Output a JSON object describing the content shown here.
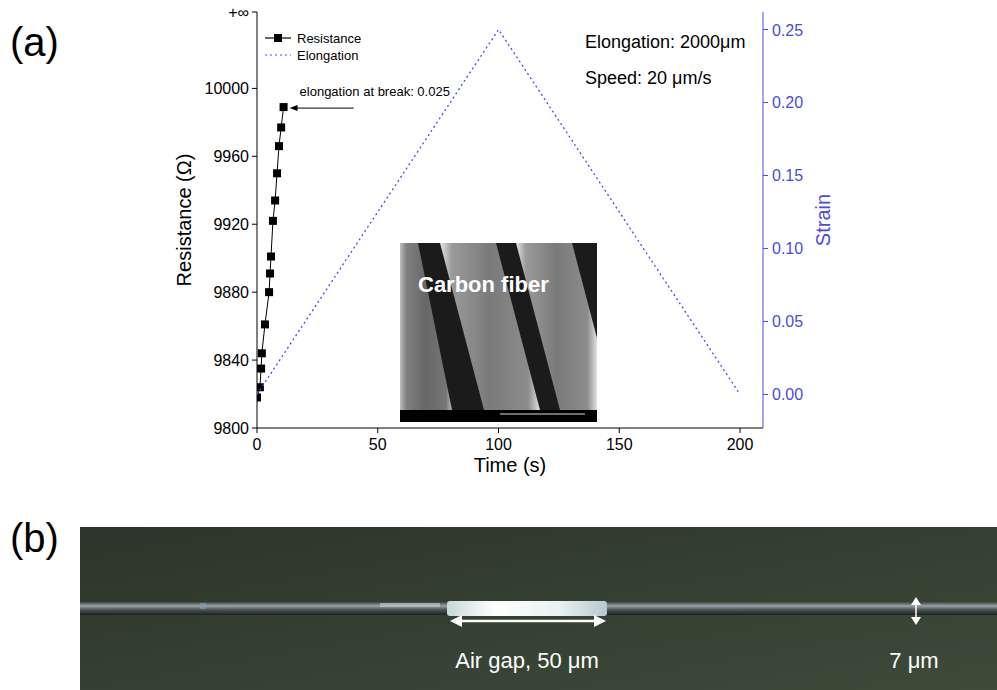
{
  "chart_data": {
    "type": "line",
    "panel_label": "(a)",
    "x_label": "Time (s)",
    "y_label": "Resistance (Ω)",
    "y2_label": "Strain",
    "xlim": [
      0,
      209.5
    ],
    "xticks": [
      0,
      50,
      100,
      150,
      200
    ],
    "ylim": [
      9800,
      10045
    ],
    "yticks": [
      9800,
      9840,
      9880,
      9920,
      9960,
      10000,
      {
        "value": 10045,
        "label": "+∞"
      }
    ],
    "y2lim": [
      -0.023,
      0.262
    ],
    "y2ticks": [
      {
        "value": 0,
        "label": "0.00"
      },
      0.05,
      {
        "value": 0.1,
        "label": "0.10"
      },
      0.15,
      {
        "value": 0.2,
        "label": "0.20"
      },
      0.25
    ],
    "legend": "upper left",
    "series": [
      {
        "name": "Resistance",
        "color": "#000000",
        "marker": "square",
        "line_style": "solid",
        "x": [
          0,
          1.2,
          1.7,
          2,
          3.3,
          5,
          5.4,
          5.8,
          6.6,
          7.5,
          8.3,
          9.1,
          10,
          11
        ],
        "values": [
          9818,
          9824,
          9835,
          9844,
          9861,
          9880,
          9891,
          9901,
          9922,
          9934,
          9950,
          9966,
          9977,
          9989
        ]
      },
      {
        "name": "Elongation",
        "color": "#4a4ae0",
        "line_style": "dotted",
        "axis": "y2",
        "x": [
          0,
          100,
          200
        ],
        "values": [
          0,
          0.25,
          0
        ]
      }
    ],
    "annotations": [
      "elongation at break: 0.025",
      "Elongation: 2000μm",
      "Speed: 20 μm/s"
    ]
  },
  "inset": {
    "label": "Carbon fiber"
  },
  "panel_b": {
    "label": "(b)",
    "annotations": [
      "Air gap, 50 μm",
      "7 μm"
    ]
  }
}
